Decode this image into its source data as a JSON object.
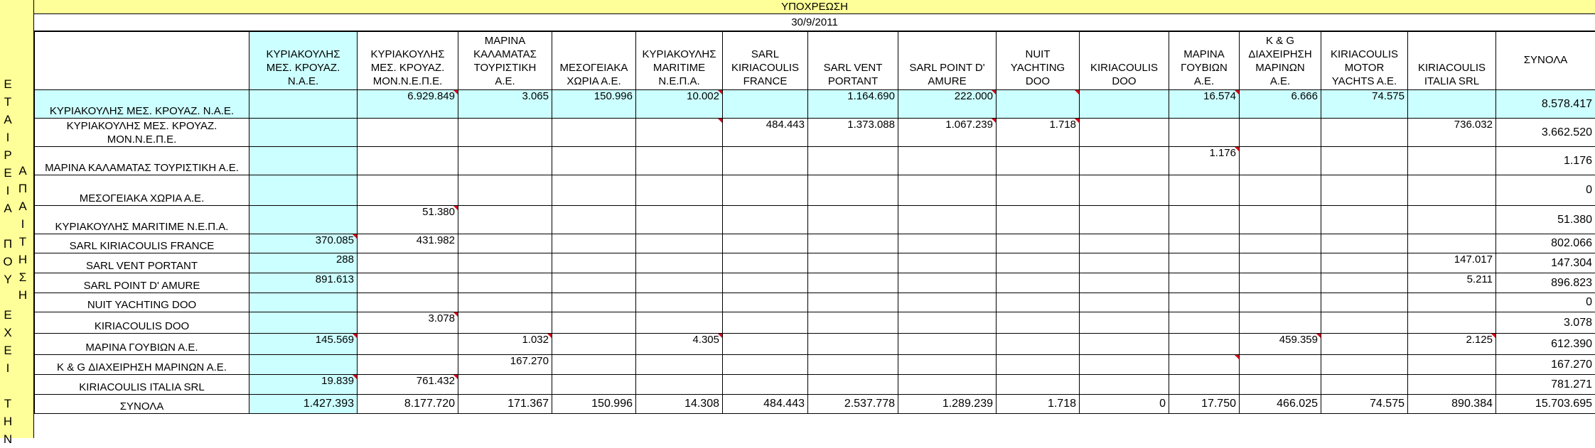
{
  "title": "ΥΠΟΧΡΕΩΣΗ",
  "date": "30/9/2011",
  "side_label_col1": "ΕΤΑΙΡΕΙΑ ΠΟΥ ΕΧΕΙ ΤΗΝ",
  "side_label_col2": "ΑΠΑΙΤΗΣΗ",
  "columns": [
    "ΚΥΡΙΑΚΟΥΛΗΣ\nΜΕΣ. ΚΡΟΥΑΖ.\nΝ.Α.Ε.",
    "ΚΥΡΙΑΚΟΥΛΗΣ\nΜΕΣ. ΚΡΟΥΑΖ.\nΜΟΝ.Ν.Ε.Π.Ε.",
    "ΜΑΡΙΝΑ\nΚΑΛΑΜΑΤΑΣ\nΤΟΥΡΙΣΤΙΚΗ\nΑ.Ε.",
    "ΜΕΣΟΓΕΙΑΚΑ\nΧΩΡΙΑ Α.Ε.",
    "ΚΥΡΙΑΚΟΥΛΗΣ\nMARITIME\nΝ.Ε.Π.Α.",
    "SARL\nKIRIACOULIS\nFRANCE",
    "SARL VENT\nPORTANT",
    "SARL POINT D'\nAMURE",
    "NUIT\nYACHTING\nDOO",
    "KIRIACOULIS\nDOO",
    "ΜΑΡΙΝΑ\nΓΟΥΒΙΩΝ\nΑ.Ε.",
    "K & G\nΔΙΑΧΕΙΡΗΣΗ\nΜΑΡΙΝΩΝ\nΑ.Ε.",
    "KIRIACOULIS\nMOTOR\nYACHTS A.E.",
    "KIRIACOULIS\nITALIA SRL",
    "ΣΥΝΟΛΑ"
  ],
  "rows": [
    {
      "label": "ΚΥΡΙΑΚΟΥΛΗΣ ΜΕΣ. ΚΡΟΥΑΖ. Ν.Α.Ε.",
      "values": [
        "",
        "6.929.849",
        "3.065",
        "150.996",
        "10.002",
        "",
        "1.164.690",
        "222.000",
        "",
        "",
        "16.574",
        "6.666",
        "74.575",
        ""
      ],
      "total": "8.578.417"
    },
    {
      "label": "ΚΥΡΙΑΚΟΥΛΗΣ ΜΕΣ. ΚΡΟΥΑΖ. ΜΟΝ.Ν.Ε.Π.Ε.",
      "values": [
        "",
        "",
        "",
        "",
        "",
        "484.443",
        "1.373.088",
        "1.067.239",
        "1.718",
        "",
        "",
        "",
        "",
        "736.032"
      ],
      "total": "3.662.520"
    },
    {
      "label": "ΜΑΡΙΝΑ ΚΑΛΑΜΑΤΑΣ ΤΟΥΡΙΣΤΙΚΗ Α.Ε.",
      "values": [
        "",
        "",
        "",
        "",
        "",
        "",
        "",
        "",
        "",
        "",
        "1.176",
        "",
        "",
        ""
      ],
      "total": "1.176"
    },
    {
      "label": "ΜΕΣΟΓΕΙΑΚΑ ΧΩΡΙΑ Α.Ε.",
      "values": [
        "",
        "",
        "",
        "",
        "",
        "",
        "",
        "",
        "",
        "",
        "",
        "",
        "",
        ""
      ],
      "total": "0"
    },
    {
      "label": "ΚΥΡΙΑΚΟΥΛΗΣ MARITIME Ν.Ε.Π.Α.",
      "values": [
        "",
        "51.380",
        "",
        "",
        "",
        "",
        "",
        "",
        "",
        "",
        "",
        "",
        "",
        ""
      ],
      "total": "51.380"
    },
    {
      "label": "SARL KIRIACOULIS FRANCE",
      "values": [
        "370.085",
        "431.982",
        "",
        "",
        "",
        "",
        "",
        "",
        "",
        "",
        "",
        "",
        "",
        ""
      ],
      "total": "802.066"
    },
    {
      "label": "SARL VENT PORTANT",
      "values": [
        "288",
        "",
        "",
        "",
        "",
        "",
        "",
        "",
        "",
        "",
        "",
        "",
        "",
        "147.017"
      ],
      "total": "147.304"
    },
    {
      "label": "SARL POINT D' AMURE",
      "values": [
        "891.613",
        "",
        "",
        "",
        "",
        "",
        "",
        "",
        "",
        "",
        "",
        "",
        "",
        "5.211"
      ],
      "total": "896.823"
    },
    {
      "label": "NUIT YACHTING DOO",
      "values": [
        "",
        "",
        "",
        "",
        "",
        "",
        "",
        "",
        "",
        "",
        "",
        "",
        "",
        ""
      ],
      "total": "0"
    },
    {
      "label": "KIRIACOULIS DOO",
      "values": [
        "",
        "3.078",
        "",
        "",
        "",
        "",
        "",
        "",
        "",
        "",
        "",
        "",
        "",
        ""
      ],
      "total": "3.078"
    },
    {
      "label": "ΜΑΡΙΝΑ ΓΟΥΒΙΩΝ Α.Ε.",
      "values": [
        "145.569",
        "",
        "1.032",
        "",
        "4.305",
        "",
        "",
        "",
        "",
        "",
        "",
        "459.359",
        "",
        "2.125"
      ],
      "total": "612.390"
    },
    {
      "label": "K & G ΔΙΑΧΕΙΡΗΣΗ ΜΑΡΙΝΩΝ Α.Ε.",
      "values": [
        "",
        "",
        "167.270",
        "",
        "",
        "",
        "",
        "",
        "",
        "",
        "",
        "",
        "",
        ""
      ],
      "total": "167.270"
    },
    {
      "label": "KIRIACOULIS ITALIA SRL",
      "values": [
        "19.839",
        "761.432",
        "",
        "",
        "",
        "",
        "",
        "",
        "",
        "",
        "",
        "",
        "",
        ""
      ],
      "total": "781.271"
    }
  ],
  "totals": {
    "label": "ΣΥΝΟΛΑ",
    "values": [
      "1.427.393",
      "8.177.720",
      "171.367",
      "150.996",
      "14.308",
      "484.443",
      "2.537.778",
      "1.289.239",
      "1.718",
      "0",
      "17.750",
      "466.025",
      "74.575",
      "890.384"
    ],
    "total": "15.703.695"
  },
  "colors": {
    "header_band": "#ffff99",
    "highlight": "#ccffff",
    "comment_marker": "#d9001b"
  }
}
